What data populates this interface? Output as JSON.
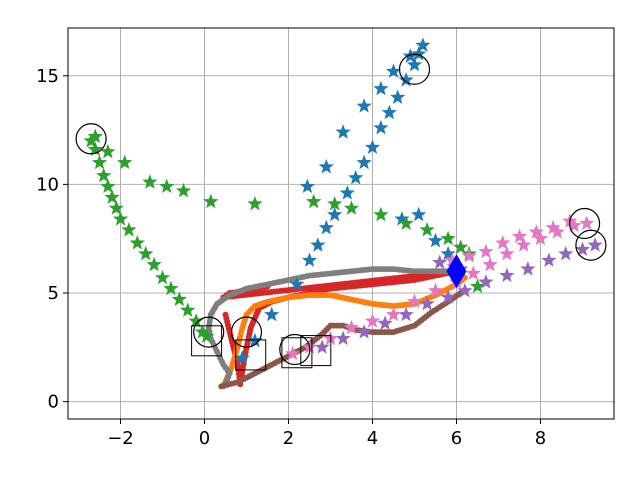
{
  "chart_data": {
    "type": "scatter",
    "xlim": [
      -3.25,
      9.75
    ],
    "ylim": [
      -0.8,
      17.2
    ],
    "x_ticks": [
      -2,
      0,
      2,
      4,
      6,
      8
    ],
    "y_ticks": [
      0,
      5,
      10,
      15
    ],
    "x_tick_labels": [
      "−2",
      "0",
      "2",
      "4",
      "6",
      "8"
    ],
    "y_tick_labels": [
      "0",
      "5",
      "10",
      "15"
    ],
    "grid": true,
    "colors": {
      "blue": "#1f77b4",
      "orange": "#ff7f0e",
      "green": "#2ca02c",
      "red": "#d62728",
      "purple": "#9467bd",
      "brown": "#8c564b",
      "pink": "#e377c2",
      "gray": "#7f7f7f",
      "marker": "#0000ff"
    },
    "star_series": [
      {
        "color": "blue",
        "points": [
          [
            0.9,
            2.0
          ],
          [
            1.2,
            2.8
          ],
          [
            1.6,
            4.0
          ],
          [
            2.2,
            5.4
          ],
          [
            2.5,
            6.5
          ],
          [
            2.7,
            7.2
          ],
          [
            2.9,
            8.0
          ],
          [
            3.1,
            8.6
          ],
          [
            3.4,
            9.6
          ],
          [
            3.6,
            10.3
          ],
          [
            3.8,
            11.0
          ],
          [
            4.0,
            11.7
          ],
          [
            4.2,
            12.6
          ],
          [
            4.4,
            13.3
          ],
          [
            4.6,
            14.0
          ],
          [
            4.8,
            14.8
          ],
          [
            5.0,
            15.5
          ],
          [
            5.1,
            16.0
          ],
          [
            5.2,
            16.4
          ],
          [
            2.45,
            9.9
          ],
          [
            2.9,
            10.8
          ],
          [
            3.3,
            12.4
          ],
          [
            3.8,
            13.6
          ],
          [
            4.2,
            14.4
          ],
          [
            4.5,
            15.2
          ],
          [
            4.9,
            15.9
          ],
          [
            4.7,
            8.4
          ],
          [
            5.1,
            8.6
          ],
          [
            5.5,
            7.4
          ],
          [
            5.8,
            6.8
          ],
          [
            5.95,
            6.2
          ]
        ]
      },
      {
        "color": "green",
        "points": [
          [
            -2.7,
            12.0
          ],
          [
            -2.6,
            11.6
          ],
          [
            -2.5,
            11.0
          ],
          [
            -2.4,
            10.4
          ],
          [
            -2.3,
            9.9
          ],
          [
            -2.2,
            9.4
          ],
          [
            -2.1,
            8.9
          ],
          [
            -2.0,
            8.4
          ],
          [
            -1.8,
            7.9
          ],
          [
            -1.6,
            7.3
          ],
          [
            -1.4,
            6.8
          ],
          [
            -1.2,
            6.3
          ],
          [
            -1.0,
            5.7
          ],
          [
            -0.8,
            5.2
          ],
          [
            -0.6,
            4.7
          ],
          [
            -0.4,
            4.2
          ],
          [
            -0.2,
            3.7
          ],
          [
            -0.05,
            3.2
          ],
          [
            0.05,
            3.0
          ],
          [
            -2.6,
            12.2
          ],
          [
            -2.3,
            11.5
          ],
          [
            -1.9,
            11.0
          ],
          [
            -1.3,
            10.1
          ],
          [
            -0.9,
            9.9
          ],
          [
            -0.5,
            9.7
          ],
          [
            0.15,
            9.2
          ],
          [
            1.2,
            9.1
          ],
          [
            2.6,
            9.2
          ],
          [
            3.1,
            9.1
          ],
          [
            3.5,
            8.9
          ],
          [
            4.2,
            8.6
          ],
          [
            4.8,
            8.2
          ],
          [
            5.3,
            7.9
          ],
          [
            5.8,
            7.5
          ],
          [
            6.1,
            7.1
          ],
          [
            6.3,
            6.8
          ],
          [
            6.5,
            5.3
          ]
        ]
      },
      {
        "color": "purple",
        "points": [
          [
            2.8,
            2.5
          ],
          [
            3.3,
            2.9
          ],
          [
            3.8,
            3.2
          ],
          [
            4.3,
            3.6
          ],
          [
            4.8,
            4.0
          ],
          [
            5.3,
            4.5
          ],
          [
            5.8,
            4.8
          ],
          [
            6.2,
            5.1
          ],
          [
            6.7,
            5.5
          ],
          [
            7.2,
            5.8
          ],
          [
            7.7,
            6.1
          ],
          [
            8.2,
            6.5
          ],
          [
            8.6,
            6.8
          ],
          [
            9.0,
            7.0
          ],
          [
            9.3,
            7.2
          ],
          [
            5.6,
            6.4
          ],
          [
            6.1,
            6.1
          ]
        ]
      },
      {
        "color": "pink",
        "points": [
          [
            2.1,
            2.2
          ],
          [
            2.5,
            2.5
          ],
          [
            3.0,
            2.9
          ],
          [
            3.5,
            3.4
          ],
          [
            4.0,
            3.7
          ],
          [
            4.5,
            4.0
          ],
          [
            5.0,
            4.6
          ],
          [
            5.5,
            5.1
          ],
          [
            6.0,
            5.5
          ],
          [
            6.4,
            5.9
          ],
          [
            6.8,
            6.3
          ],
          [
            7.2,
            6.8
          ],
          [
            7.6,
            7.2
          ],
          [
            8.0,
            7.5
          ],
          [
            8.4,
            7.8
          ],
          [
            8.8,
            8.1
          ],
          [
            9.1,
            8.2
          ],
          [
            5.9,
            6.5
          ],
          [
            6.3,
            6.7
          ],
          [
            6.7,
            6.9
          ],
          [
            7.1,
            7.3
          ],
          [
            7.5,
            7.6
          ],
          [
            7.9,
            7.8
          ],
          [
            8.3,
            8.0
          ],
          [
            8.7,
            8.3
          ]
        ]
      }
    ],
    "dot_series": [
      {
        "color": "red",
        "points": [
          [
            0.5,
            4.0
          ],
          [
            0.6,
            3.2
          ],
          [
            0.7,
            2.4
          ],
          [
            0.8,
            1.6
          ],
          [
            0.85,
            0.8
          ],
          [
            0.95,
            2.0
          ],
          [
            1.1,
            3.4
          ],
          [
            1.3,
            4.3
          ],
          [
            1.6,
            4.6
          ],
          [
            2.0,
            4.8
          ],
          [
            2.5,
            5.0
          ],
          [
            3.0,
            5.2
          ],
          [
            3.5,
            5.3
          ],
          [
            4.0,
            5.4
          ],
          [
            4.5,
            5.5
          ],
          [
            5.0,
            5.6
          ],
          [
            5.5,
            5.8
          ],
          [
            6.0,
            6.0
          ],
          [
            0.45,
            4.8
          ],
          [
            0.6,
            5.0
          ],
          [
            1.0,
            5.1
          ],
          [
            1.5,
            5.3
          ]
        ]
      },
      {
        "color": "orange",
        "points": [
          [
            0.45,
            0.7
          ],
          [
            0.65,
            1.6
          ],
          [
            0.8,
            2.6
          ],
          [
            0.9,
            3.4
          ],
          [
            1.0,
            4.0
          ],
          [
            1.2,
            4.4
          ],
          [
            1.5,
            4.6
          ],
          [
            2.0,
            4.8
          ],
          [
            2.5,
            4.9
          ],
          [
            3.0,
            4.9
          ],
          [
            3.5,
            4.7
          ],
          [
            4.0,
            4.5
          ],
          [
            4.5,
            4.4
          ],
          [
            5.0,
            4.5
          ],
          [
            5.5,
            4.9
          ],
          [
            6.0,
            5.4
          ],
          [
            6.2,
            5.7
          ]
        ]
      },
      {
        "color": "gray",
        "points": [
          [
            0.5,
            0.8
          ],
          [
            0.6,
            1.3
          ],
          [
            0.45,
            1.7
          ],
          [
            0.3,
            2.3
          ],
          [
            0.15,
            2.9
          ],
          [
            0.1,
            3.4
          ],
          [
            0.15,
            4.0
          ],
          [
            0.3,
            4.5
          ],
          [
            0.6,
            4.9
          ],
          [
            1.0,
            5.2
          ],
          [
            1.5,
            5.4
          ],
          [
            2.0,
            5.6
          ],
          [
            2.5,
            5.8
          ],
          [
            3.0,
            5.9
          ],
          [
            3.5,
            6.0
          ],
          [
            4.0,
            6.1
          ],
          [
            4.5,
            6.1
          ],
          [
            5.0,
            6.0
          ],
          [
            5.5,
            6.0
          ],
          [
            6.0,
            6.0
          ]
        ]
      },
      {
        "color": "brown",
        "points": [
          [
            0.4,
            0.7
          ],
          [
            0.8,
            0.9
          ],
          [
            1.2,
            1.3
          ],
          [
            1.6,
            1.7
          ],
          [
            2.0,
            2.1
          ],
          [
            2.4,
            2.5
          ],
          [
            2.8,
            3.1
          ],
          [
            3.0,
            3.5
          ],
          [
            3.3,
            3.5
          ],
          [
            3.6,
            3.3
          ],
          [
            4.0,
            3.2
          ],
          [
            4.5,
            3.2
          ],
          [
            5.0,
            3.5
          ],
          [
            5.4,
            4.1
          ],
          [
            5.8,
            4.6
          ],
          [
            6.1,
            5.0
          ]
        ]
      }
    ],
    "circles": [
      [
        -2.7,
        12.1
      ],
      [
        5.0,
        15.3
      ],
      [
        9.05,
        8.2
      ],
      [
        9.2,
        7.2
      ],
      [
        0.1,
        3.2
      ],
      [
        1.0,
        3.2
      ],
      [
        2.15,
        2.4
      ]
    ],
    "squares": [
      [
        0.05,
        2.8
      ],
      [
        1.1,
        2.15
      ],
      [
        2.2,
        2.25
      ],
      [
        2.65,
        2.35
      ]
    ],
    "diamond": [
      6.0,
      6.0
    ]
  }
}
